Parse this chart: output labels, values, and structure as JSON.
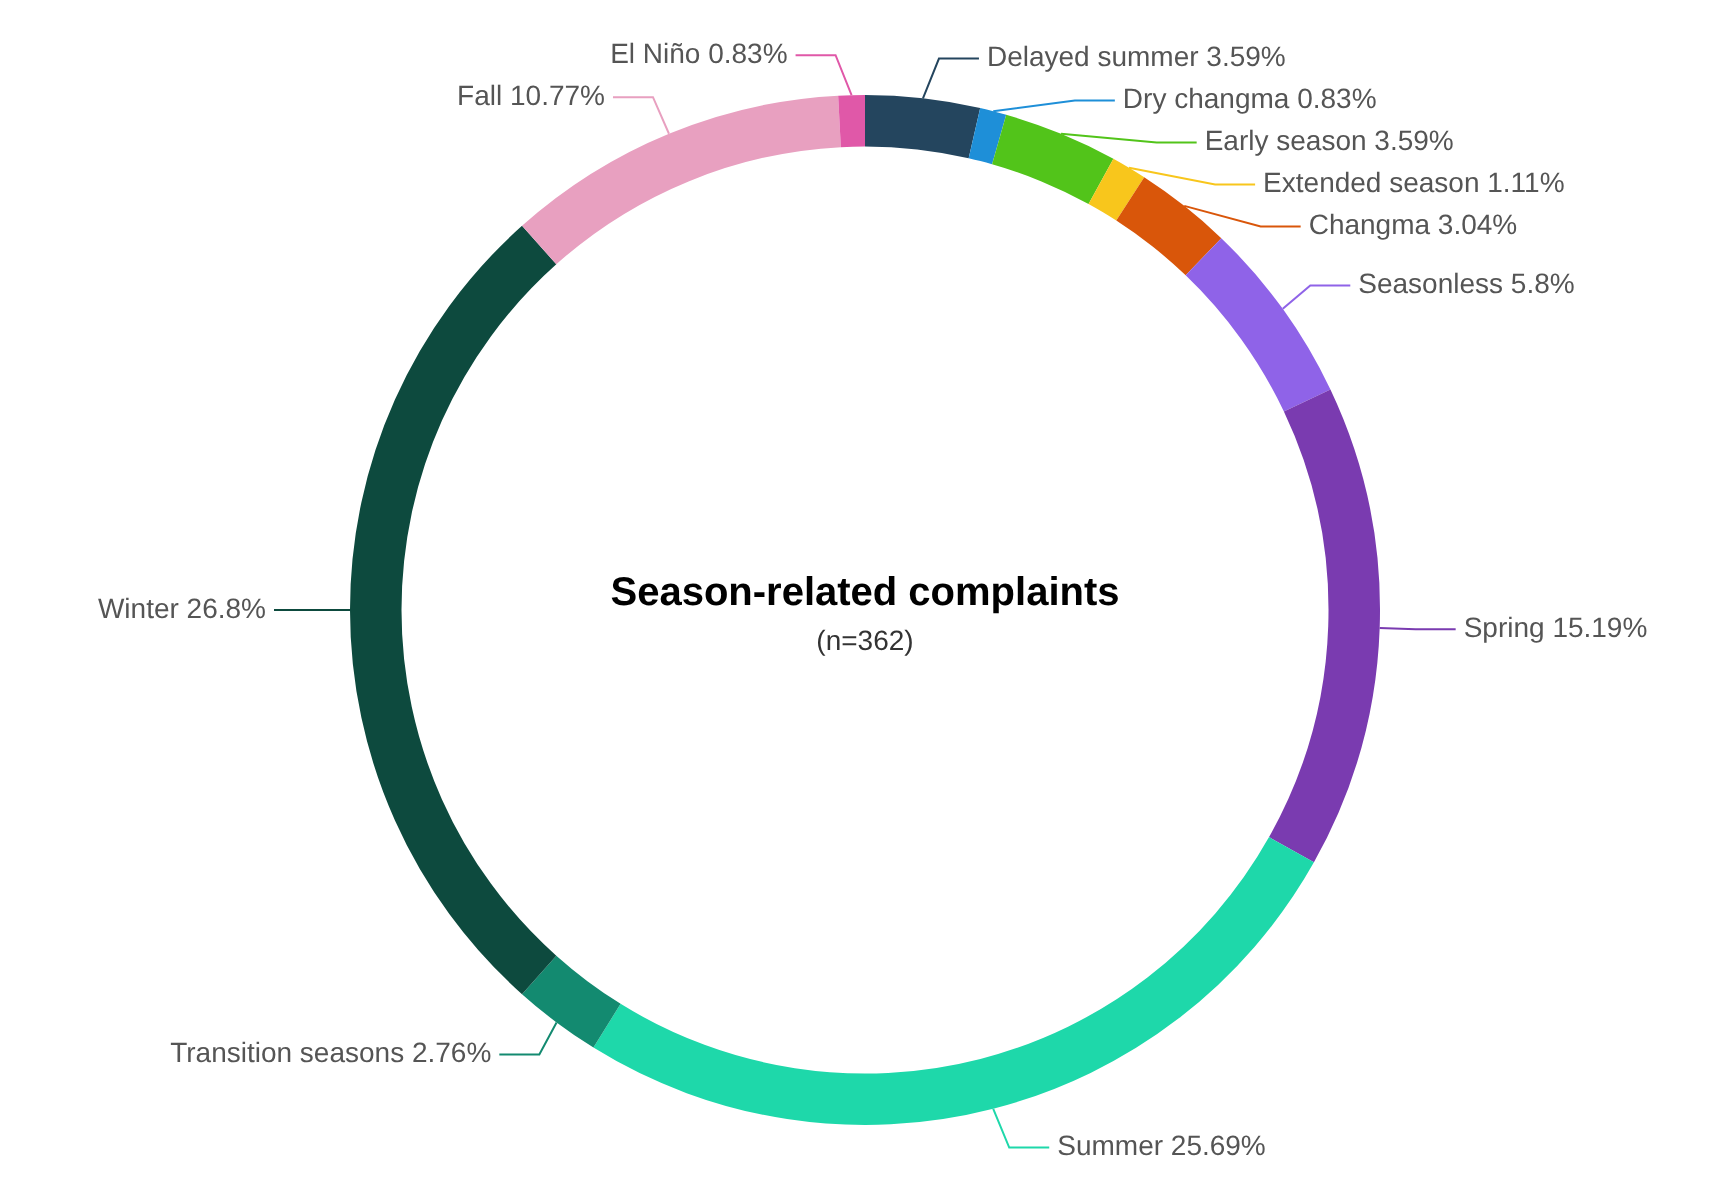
{
  "chart_data": {
    "type": "donut",
    "title": "Season-related complaints",
    "subtitle": "(n=362)",
    "categories": [
      "Delayed summer",
      "Dry changma",
      "Early season",
      "Extended season",
      "Changma",
      "Seasonless",
      "Spring",
      "Summer",
      "Transition seasons",
      "Winter",
      "Fall",
      "El Niño"
    ],
    "values": [
      3.59,
      0.83,
      3.59,
      1.11,
      3.04,
      5.8,
      15.19,
      25.69,
      2.76,
      26.8,
      10.77,
      0.83
    ],
    "value_labels": [
      "3.59%",
      "0.83%",
      "3.59%",
      "1.11%",
      "3.04%",
      "5.8%",
      "15.19%",
      "25.69%",
      "2.76%",
      "26.8%",
      "10.77%",
      "0.83%"
    ],
    "colors": [
      "#24455e",
      "#1e8fd8",
      "#52c41a",
      "#f8c61c",
      "#d9560a",
      "#8f63e8",
      "#7a3bb0",
      "#1ed8aa",
      "#138a70",
      "#0d4a3e",
      "#e8a0c0",
      "#e058a8"
    ]
  }
}
